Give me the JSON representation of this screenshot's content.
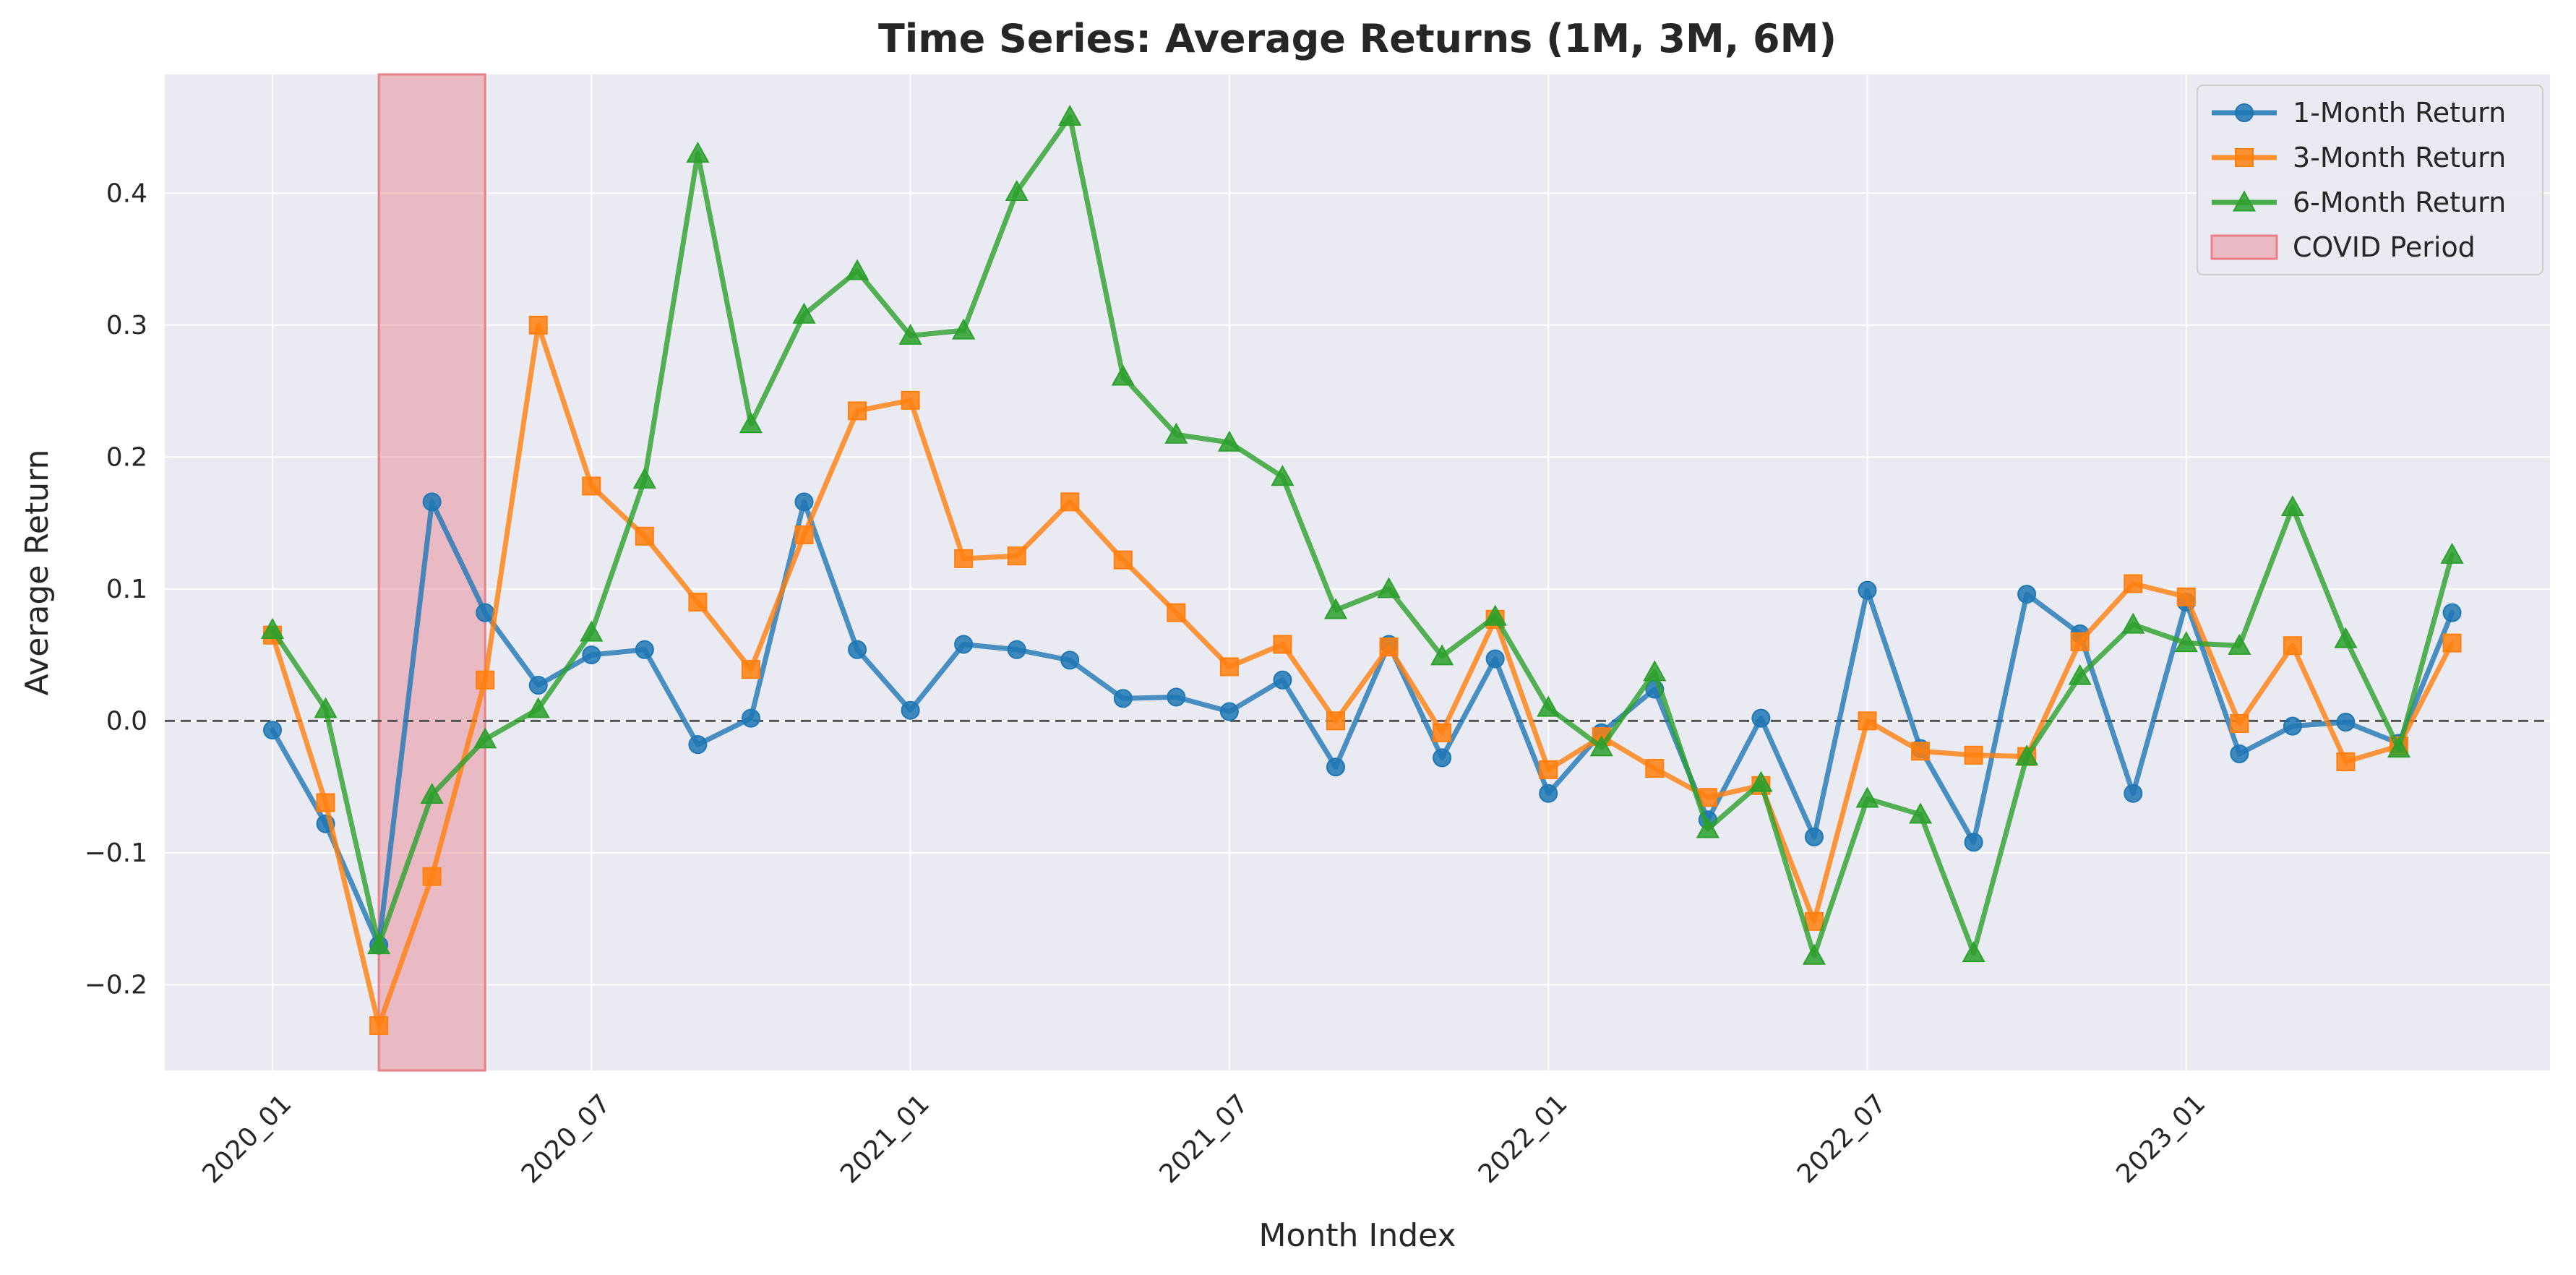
{
  "chart_data": {
    "type": "line",
    "title": "Time Series: Average Returns (1M, 3M, 6M)",
    "xlabel": "Month Index",
    "ylabel": "Average Return",
    "x": [
      "2020_01",
      "2020_02",
      "2020_03",
      "2020_04",
      "2020_05",
      "2020_06",
      "2020_07",
      "2020_08",
      "2020_09",
      "2020_10",
      "2020_11",
      "2020_12",
      "2021_01",
      "2021_02",
      "2021_03",
      "2021_04",
      "2021_05",
      "2021_06",
      "2021_07",
      "2021_08",
      "2021_09",
      "2021_10",
      "2021_11",
      "2021_12",
      "2022_01",
      "2022_02",
      "2022_03",
      "2022_04",
      "2022_05",
      "2022_06",
      "2022_07",
      "2022_08",
      "2022_09",
      "2022_10",
      "2022_11",
      "2022_12",
      "2023_01",
      "2023_02",
      "2023_03",
      "2023_04",
      "2023_05",
      "2023_06"
    ],
    "xticks": [
      "2020_01",
      "2020_07",
      "2021_01",
      "2021_07",
      "2022_01",
      "2022_07",
      "2023_01"
    ],
    "ylim": [
      -0.265,
      0.49
    ],
    "yticks": [
      -0.2,
      -0.1,
      0.0,
      0.1,
      0.2,
      0.3,
      0.4
    ],
    "ytick_labels": [
      "−0.2",
      "−0.1",
      "0.0",
      "0.1",
      "0.2",
      "0.3",
      "0.4"
    ],
    "grid": true,
    "legend_position": "top-right",
    "zero_line": 0.0,
    "series": [
      {
        "name": "1-Month Return",
        "color": "#1f77b4",
        "marker": "circle",
        "values": [
          -0.007,
          -0.078,
          -0.17,
          0.166,
          0.082,
          0.027,
          0.05,
          0.054,
          -0.018,
          0.002,
          0.166,
          0.054,
          0.008,
          0.058,
          0.054,
          0.046,
          0.017,
          0.018,
          0.007,
          0.031,
          -0.035,
          0.058,
          -0.028,
          0.047,
          -0.055,
          -0.009,
          0.024,
          -0.075,
          0.002,
          -0.088,
          0.099,
          -0.021,
          -0.092,
          0.096,
          0.066,
          -0.055,
          0.09,
          -0.025,
          -0.004,
          -0.001,
          -0.017,
          0.082
        ]
      },
      {
        "name": "3-Month Return",
        "color": "#ff7f0e",
        "marker": "square",
        "values": [
          0.065,
          -0.062,
          -0.231,
          -0.118,
          0.031,
          0.3,
          0.178,
          0.14,
          0.09,
          0.039,
          0.141,
          0.235,
          0.243,
          0.123,
          0.125,
          0.166,
          0.122,
          0.082,
          0.041,
          0.058,
          -0.0,
          0.056,
          -0.009,
          0.077,
          -0.037,
          -0.012,
          -0.036,
          -0.058,
          -0.049,
          -0.152,
          -0.0,
          -0.023,
          -0.026,
          -0.027,
          0.06,
          0.104,
          0.094,
          -0.002,
          0.057,
          -0.031,
          -0.019,
          0.059
        ]
      },
      {
        "name": "6-Month Return",
        "color": "#2ca02c",
        "marker": "triangle",
        "values": [
          0.069,
          0.009,
          -0.17,
          -0.056,
          -0.014,
          0.009,
          0.067,
          0.183,
          0.43,
          0.225,
          0.308,
          0.341,
          0.292,
          0.296,
          0.401,
          0.458,
          0.261,
          0.217,
          0.211,
          0.185,
          0.084,
          0.1,
          0.049,
          0.079,
          0.01,
          -0.02,
          0.037,
          -0.082,
          -0.047,
          -0.178,
          -0.059,
          -0.071,
          -0.176,
          -0.027,
          0.034,
          0.073,
          0.059,
          0.057,
          0.162,
          0.062,
          -0.021,
          0.126
        ]
      }
    ],
    "shaded_regions": [
      {
        "name": "COVID Period",
        "start": "2020_03",
        "end": "2020_05",
        "color": "#e8808a"
      }
    ]
  }
}
